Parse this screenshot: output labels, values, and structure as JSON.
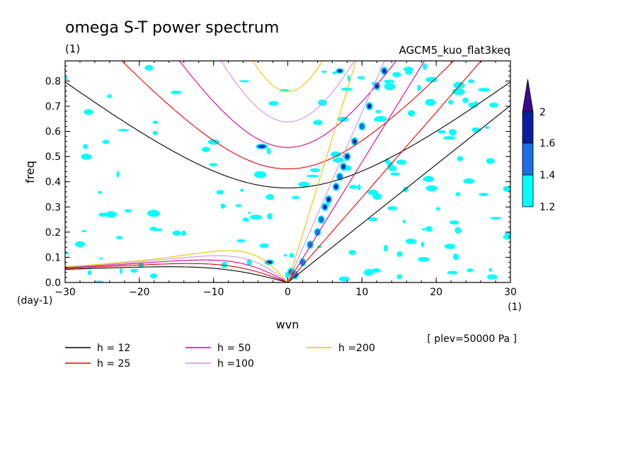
{
  "title": "omega S-T power spectrum",
  "subtitle_left": "(1)",
  "subtitle_right": "AGCM5_kuo_flat3keq",
  "xlabel": "wvn",
  "xunit": "(1)",
  "ylabel": "freq",
  "yunit": "(day-1)",
  "footnote": "[ plev=50000 Pa ]",
  "colorbar": {
    "ticks": [
      "1.2",
      "1.4",
      "1.6",
      "2"
    ],
    "colors": [
      "#00ffff",
      "#1e6fe6",
      "#0a1ea0",
      "#3c0a8c"
    ]
  },
  "chart_data": {
    "type": "heatmap",
    "xlim": [
      -30,
      30
    ],
    "ylim": [
      0,
      0.88
    ],
    "xticks": [
      "-30",
      "-20",
      "-10",
      "0",
      "10",
      "20",
      "30"
    ],
    "yticks": [
      "0.0",
      "0.1",
      "0.2",
      "0.3",
      "0.4",
      "0.5",
      "0.6",
      "0.7",
      "0.8"
    ],
    "dispersion_curves": [
      {
        "label": "h = 12",
        "h": 12,
        "color": "#000000"
      },
      {
        "label": "h = 25",
        "h": 25,
        "color": "#e60000"
      },
      {
        "label": "h = 50",
        "h": 50,
        "color": "#d2009a"
      },
      {
        "label": "h =100",
        "h": 100,
        "color": "#d98fd6"
      },
      {
        "label": "h =200",
        "h": 200,
        "color": "#e6c300"
      }
    ]
  }
}
